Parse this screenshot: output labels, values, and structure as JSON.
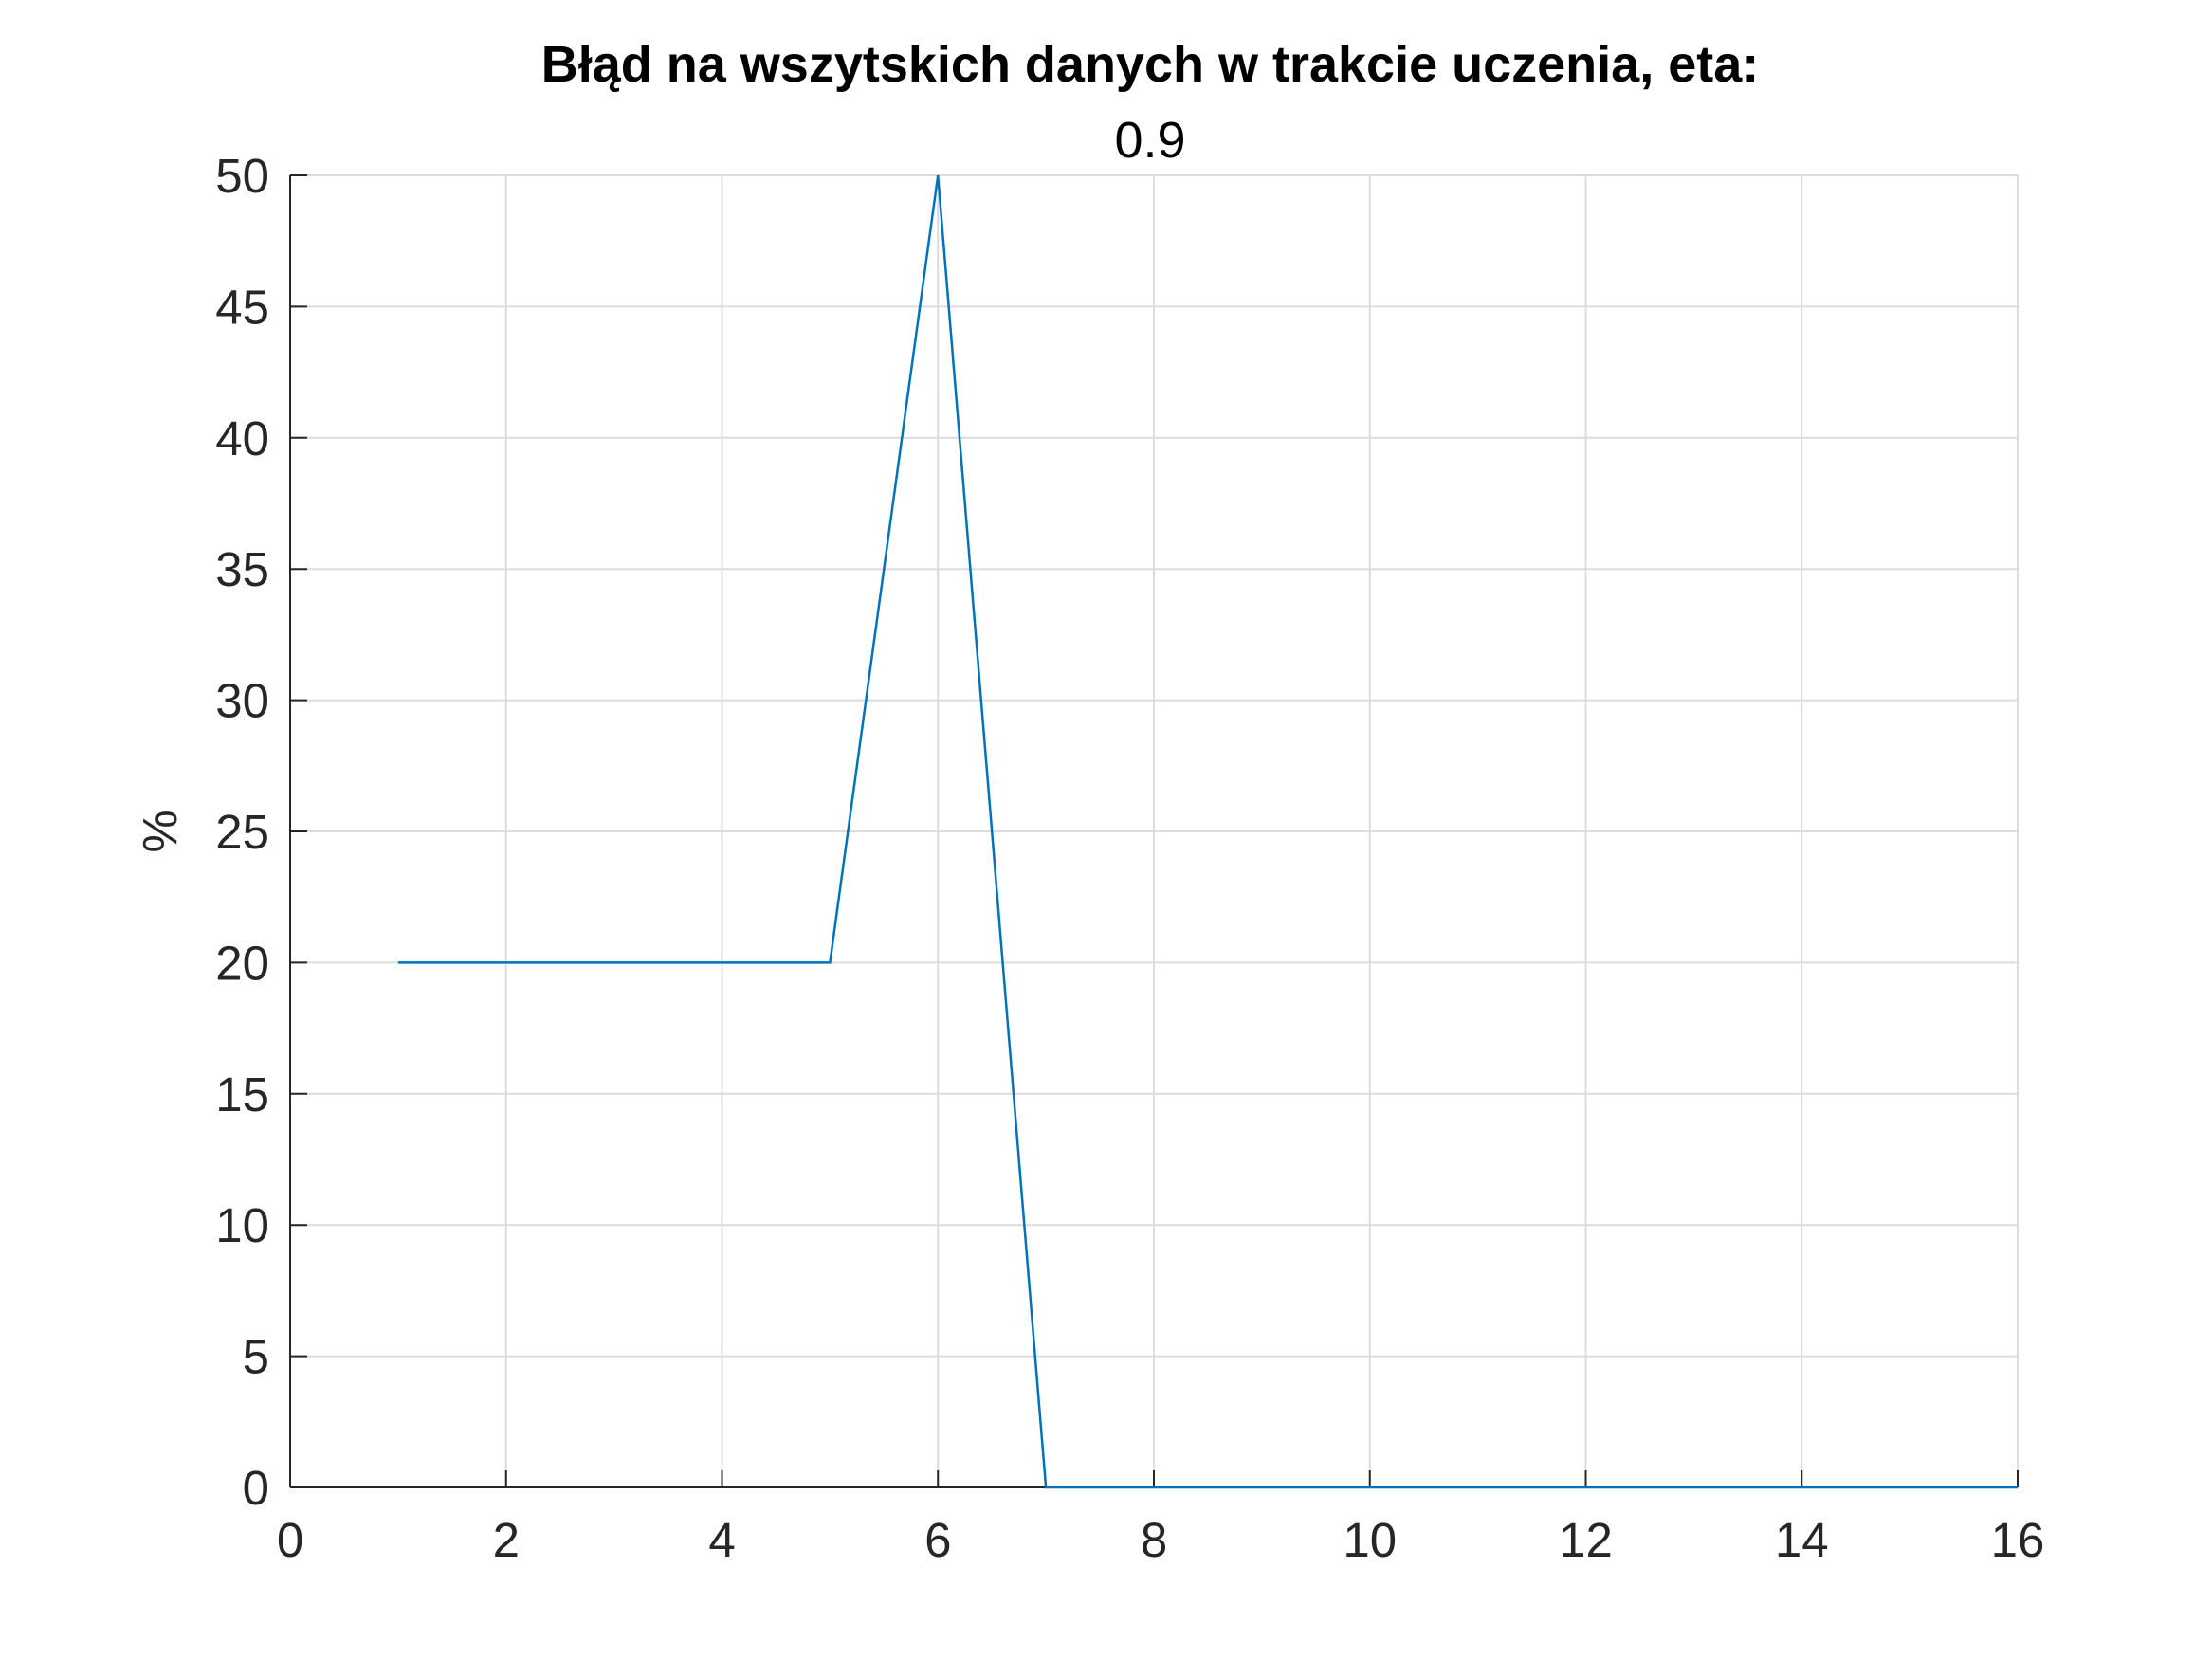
{
  "chart_data": {
    "type": "line",
    "title": "Błąd na wszytskich danych w trakcie uczenia, eta:",
    "subtitle": "0.9",
    "xlabel": "",
    "ylabel": "%",
    "xlim": [
      0,
      16
    ],
    "ylim": [
      0,
      50
    ],
    "xticks": [
      0,
      2,
      4,
      6,
      8,
      10,
      12,
      14,
      16
    ],
    "yticks": [
      0,
      5,
      10,
      15,
      20,
      25,
      30,
      35,
      40,
      45,
      50
    ],
    "xtick_labels": [
      "0",
      "2",
      "4",
      "6",
      "8",
      "10",
      "12",
      "14",
      "16"
    ],
    "ytick_labels": [
      "0",
      "5",
      "10",
      "15",
      "20",
      "25",
      "30",
      "35",
      "40",
      "45",
      "50"
    ],
    "grid": true,
    "series": [
      {
        "color": "#0072BD",
        "x": [
          1,
          2,
          3,
          4,
          5,
          6,
          7,
          8,
          9,
          10,
          11,
          12,
          13,
          14,
          15,
          16
        ],
        "y": [
          20,
          20,
          20,
          20,
          20,
          50,
          0,
          0,
          0,
          0,
          0,
          0,
          0,
          0,
          0,
          0
        ]
      }
    ]
  }
}
